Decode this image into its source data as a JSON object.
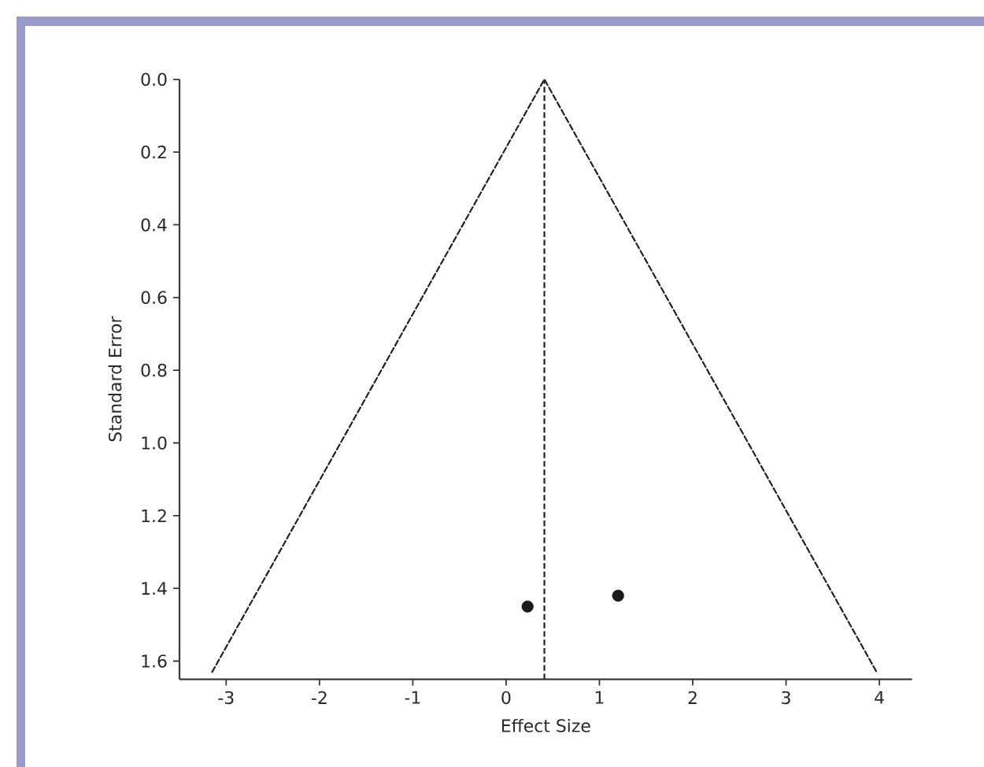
{
  "chart_data": {
    "type": "scatter",
    "xlabel": "Effect Size",
    "ylabel": "Standard Error",
    "xlim": [
      -3.5,
      4.35
    ],
    "ylim": [
      1.65,
      0
    ],
    "xticks": [
      -3,
      -2,
      -1,
      0,
      1,
      2,
      3,
      4
    ],
    "yticks": [
      {
        "value": 0,
        "label": "0.0"
      },
      0.2,
      0.4,
      0.6,
      0.8,
      {
        "value": 1,
        "label": "1.0"
      },
      1.2,
      1.4,
      1.6
    ],
    "series": [
      {
        "type": "line",
        "x": [
          -3.15,
          0.41,
          3.97
        ],
        "values": [
          1.63,
          0,
          1.63
        ],
        "color": "#222222",
        "line_style": "dashed",
        "marker": "none"
      },
      {
        "x": [
          0.23,
          1.2
        ],
        "values": [
          1.45,
          1.42
        ],
        "color": "#1a1a1a",
        "marker": "circle"
      }
    ],
    "ref_lines": [
      {
        "axis": "x",
        "value": 0.41,
        "color": "#222222",
        "line_style": "dashed"
      }
    ]
  }
}
